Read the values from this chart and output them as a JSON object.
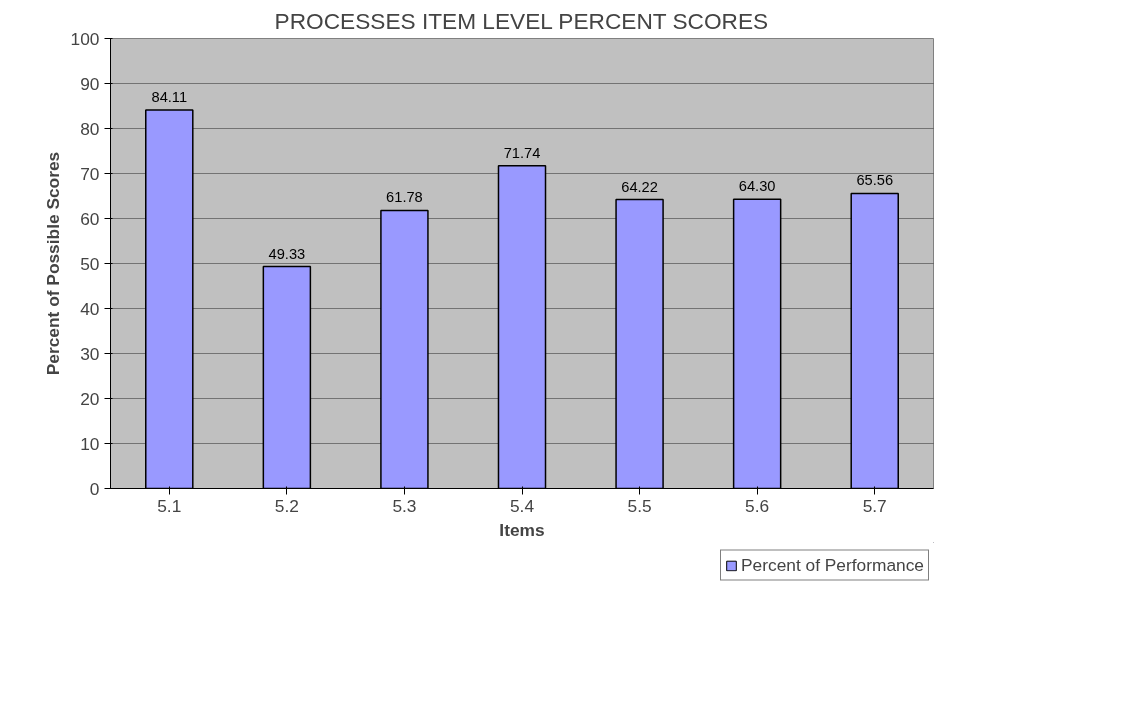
{
  "chart_data": {
    "type": "bar",
    "title": "PROCESSES ITEM LEVEL PERCENT SCORES",
    "xlabel": "Items",
    "ylabel": "Percent of Possible Scores",
    "categories": [
      "5.1",
      "5.2",
      "5.3",
      "5.4",
      "5.5",
      "5.6",
      "5.7"
    ],
    "series": [
      {
        "name": "Percent of Performance",
        "color": "#9999ff",
        "values": [
          84.11,
          49.33,
          61.78,
          71.74,
          64.22,
          64.3,
          65.56
        ],
        "value_labels": [
          "84.11",
          "49.33",
          "61.78",
          "71.74",
          "64.22",
          "64.30",
          "65.56"
        ]
      }
    ],
    "ylim": [
      0,
      100
    ],
    "yticks": [
      0,
      10,
      20,
      30,
      40,
      50,
      60,
      70,
      80,
      90,
      100
    ],
    "grid": "y",
    "legend": "bottom right"
  }
}
